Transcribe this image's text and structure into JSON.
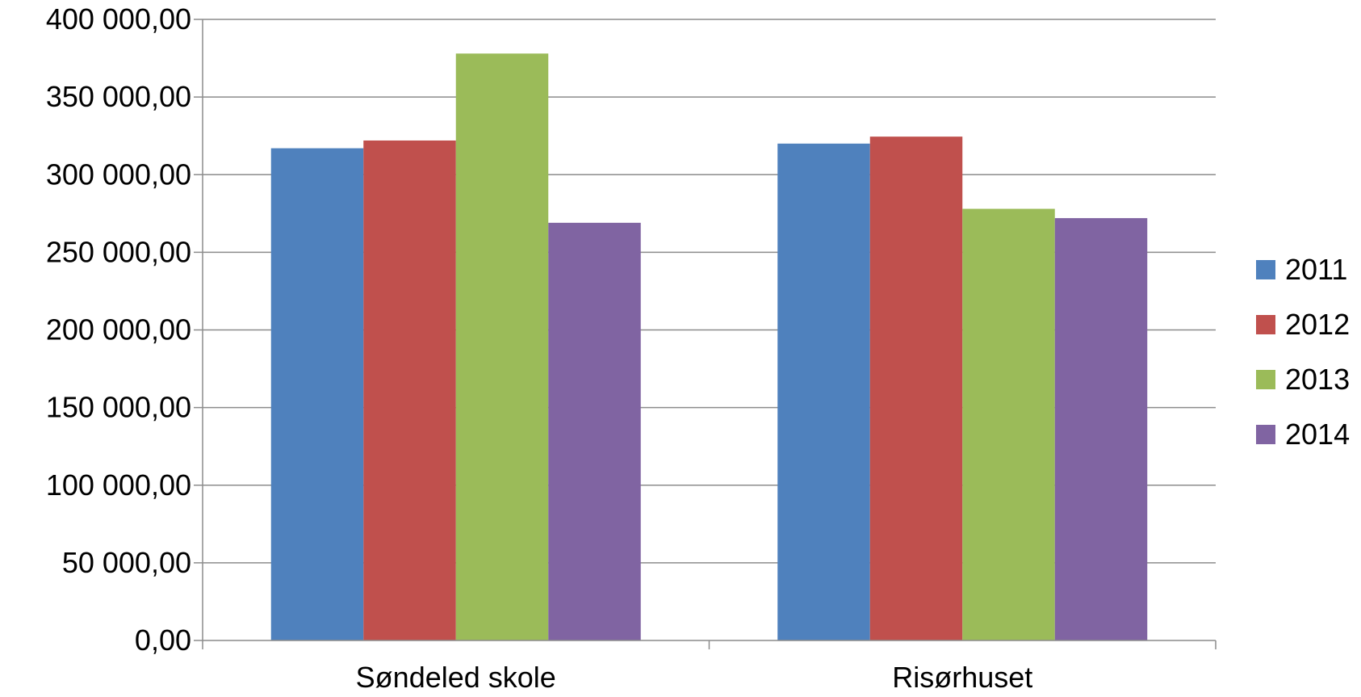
{
  "chart_data": {
    "type": "bar",
    "title": "",
    "xlabel": "",
    "ylabel": "",
    "categories": [
      "Søndeled skole",
      "Risørhuset"
    ],
    "series": [
      {
        "name": "2011",
        "values": [
          317000,
          320000
        ],
        "color": "#4f81bd"
      },
      {
        "name": "2012",
        "values": [
          322000,
          324500
        ],
        "color": "#c0504d"
      },
      {
        "name": "2013",
        "values": [
          378000,
          278000
        ],
        "color": "#9bbb59"
      },
      {
        "name": "2014",
        "values": [
          269000,
          272000
        ],
        "color": "#8064a2"
      }
    ],
    "ylim": [
      0,
      400000
    ],
    "yticks": [
      0,
      50000,
      100000,
      150000,
      200000,
      250000,
      300000,
      350000,
      400000
    ],
    "ytick_labels": [
      "0,00",
      "50 000,00",
      "100 000,00",
      "150 000,00",
      "200 000,00",
      "250 000,00",
      "300 000,00",
      "350 000,00",
      "400 000,00"
    ],
    "grid": true,
    "legend_position": "right"
  }
}
